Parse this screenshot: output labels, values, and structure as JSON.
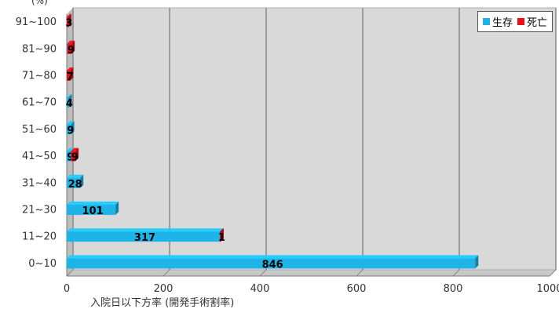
{
  "chart_data": {
    "type": "bar",
    "orientation": "horizontal",
    "stacked": true,
    "title": "",
    "xlabel": "入院日以下方率 (開発手術割率)",
    "ylabel": "(%)",
    "categories": [
      "0~10",
      "11~20",
      "21~30",
      "31~40",
      "41~50",
      "51~60",
      "61~70",
      "71~80",
      "81~90",
      "91~100"
    ],
    "xlim": [
      0,
      1000
    ],
    "x_ticks": [
      "0",
      "200",
      "400",
      "600",
      "800",
      "1000"
    ],
    "grid": true,
    "legend_position": "top-right",
    "series": [
      {
        "name": "生存",
        "color": "#1eb4e8",
        "values": [
          846,
          317,
          101,
          28,
          9,
          9,
          4,
          0,
          1,
          0
        ],
        "labels": [
          "846",
          "317",
          "101",
          "28",
          "9",
          "9",
          "4",
          "",
          "",
          ""
        ]
      },
      {
        "name": "死亡",
        "color": "#e8111a",
        "values": [
          0,
          1,
          0,
          0,
          9,
          0,
          0,
          7,
          9,
          3
        ],
        "labels": [
          "",
          "1",
          "",
          "",
          "9",
          "",
          "",
          "7",
          "9",
          "3"
        ]
      }
    ]
  }
}
